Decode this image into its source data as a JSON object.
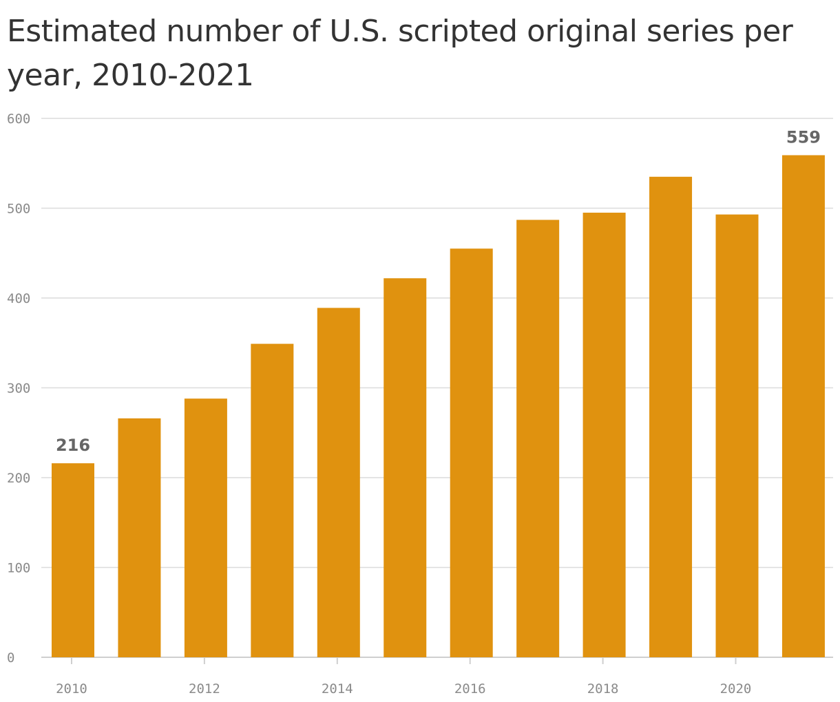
{
  "chart_data": {
    "type": "bar",
    "title": "Estimated number of U.S. scripted original series per year, 2010-2021",
    "xlabel": "",
    "ylabel": "",
    "categories": [
      2010,
      2011,
      2012,
      2013,
      2014,
      2015,
      2016,
      2017,
      2018,
      2019,
      2020,
      2021
    ],
    "values": [
      216,
      266,
      288,
      349,
      389,
      422,
      455,
      487,
      495,
      535,
      493,
      559
    ],
    "ylim": [
      0,
      600
    ],
    "yticks": [
      0,
      100,
      200,
      300,
      400,
      500,
      600
    ],
    "xticks": [
      2010,
      2012,
      2014,
      2016,
      2018,
      2020
    ],
    "data_labels": [
      {
        "category": 2010,
        "text": "216"
      },
      {
        "category": 2021,
        "text": "559"
      }
    ],
    "grid": true,
    "bar_color": "#e0920f"
  }
}
